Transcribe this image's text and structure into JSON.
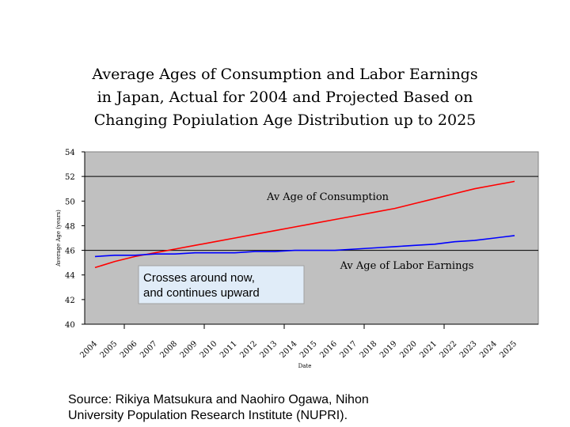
{
  "title_lines": [
    "Average Ages of Consumption and Labor Earnings",
    "in Japan, Actual for 2004 and Projected Based on",
    "Changing Popiulation Age Distribution up to 2025"
  ],
  "source_lines": [
    "Source: Rikiya Matsukura and Naohiro Ogawa, Nihon",
    "University Population Research Institute (NUPRI)."
  ],
  "colors": {
    "plot_bg": "#c0c0c0",
    "consumption": "#ff0000",
    "labor": "#0000ff",
    "callout_bg": "#e0ecf8"
  },
  "chart_data": {
    "type": "line",
    "xlabel": "Date",
    "ylabel": "Average Age (years)",
    "ylim": [
      40,
      54
    ],
    "yticks": [
      40,
      42,
      44,
      46,
      48,
      50,
      52,
      54
    ],
    "grid": "horizontal at 46 and 52",
    "x": [
      2004,
      2005,
      2006,
      2007,
      2008,
      2009,
      2010,
      2011,
      2012,
      2013,
      2014,
      2015,
      2016,
      2017,
      2018,
      2019,
      2020,
      2021,
      2022,
      2023,
      2024,
      2025
    ],
    "series": [
      {
        "name": "Av Age of Consumption",
        "values": [
          44.6,
          45.1,
          45.5,
          45.8,
          46.1,
          46.4,
          46.7,
          47.0,
          47.3,
          47.6,
          47.9,
          48.2,
          48.5,
          48.8,
          49.1,
          49.4,
          49.8,
          50.2,
          50.6,
          51.0,
          51.3,
          51.6
        ]
      },
      {
        "name": "Av Age of Labor Earnings",
        "values": [
          45.5,
          45.6,
          45.6,
          45.7,
          45.7,
          45.8,
          45.8,
          45.8,
          45.9,
          45.9,
          46.0,
          46.0,
          46.0,
          46.1,
          46.2,
          46.3,
          46.4,
          46.5,
          46.7,
          46.8,
          47.0,
          47.2
        ]
      }
    ],
    "annotations": [
      {
        "text_lines": [
          "Crosses around now,",
          "and continues upward"
        ]
      }
    ]
  }
}
